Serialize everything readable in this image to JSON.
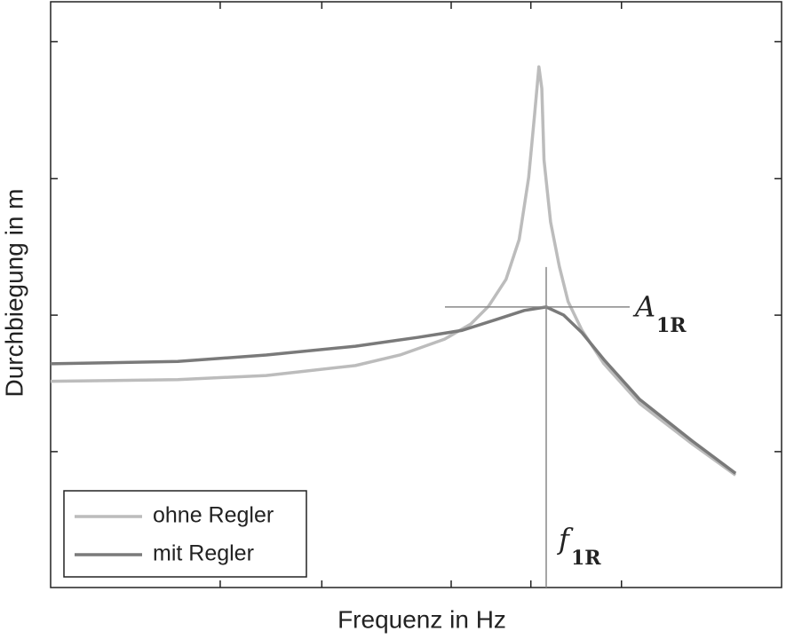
{
  "chart_data": {
    "type": "line",
    "x_label": "Frequenz in Hz",
    "y_label": "Durchbiegung in m",
    "xlim": [
      0,
      100
    ],
    "ylim": [
      0,
      100
    ],
    "xtick_marks": [
      23.2,
      37.1,
      54.8,
      65.7,
      78.1
    ],
    "ytick_marks": [
      23.2,
      46.5,
      69.8,
      93.2
    ],
    "legend": "lower left",
    "series": [
      {
        "name": "ohne Regler",
        "color": "#bcbcbc",
        "x": [
          0,
          17.4,
          29.5,
          41.7,
          47.8,
          53.9,
          57.5,
          59.9,
          62.3,
          64.1,
          65.4,
          66.2,
          66.8,
          67.2,
          67.5,
          68.4,
          69.6,
          70.8,
          72.7,
          75.7,
          80.6,
          87.8,
          93.7
        ],
        "values": [
          35.2,
          35.5,
          36.2,
          37.9,
          39.7,
          42.4,
          45.0,
          48.0,
          52.6,
          59.4,
          70.0,
          80.6,
          88.9,
          85.2,
          73.0,
          62.4,
          54.8,
          48.8,
          43.9,
          38.2,
          31.4,
          24.5,
          19.2
        ]
      },
      {
        "name": "mit Regler",
        "color": "#7a7a7a",
        "x": [
          0,
          17.4,
          29.5,
          41.7,
          50.2,
          56.3,
          61.1,
          64.8,
          67.8,
          70.2,
          72.7,
          75.7,
          80.6,
          87.8,
          93.7
        ],
        "values": [
          38.2,
          38.6,
          39.7,
          41.2,
          42.7,
          43.9,
          45.8,
          47.3,
          47.9,
          46.5,
          43.5,
          38.9,
          32.1,
          25.0,
          19.5
        ]
      }
    ],
    "marker": {
      "x": 67.8,
      "y": 47.9,
      "y_label": "A",
      "y_label_sub": "1R",
      "x_label": "f",
      "x_label_sub": "1R"
    }
  }
}
